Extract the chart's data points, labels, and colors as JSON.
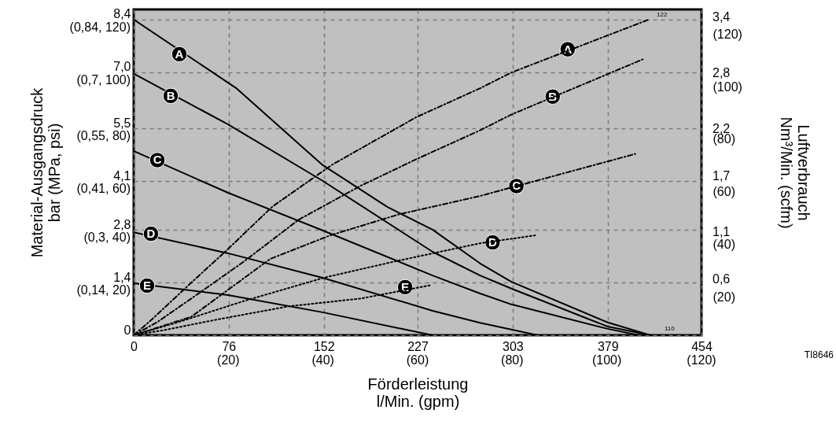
{
  "chart_data": {
    "type": "line",
    "xlabel": "Förderleistung\nl/Min. (gpm)",
    "ylabel": "Material-Ausgangsdruck\nbar (MPa, psi)",
    "y2label": "Luftverbrauch\nNm³/Min. (scfm)",
    "xlim": [
      0,
      454
    ],
    "xticks": [
      0,
      76,
      152,
      227,
      303,
      379,
      454
    ],
    "x2lim": [
      0,
      120
    ],
    "x2ticks": [
      {
        "value": 20,
        "label": "(20)"
      },
      {
        "value": 40,
        "label": "(40)"
      },
      {
        "value": 60,
        "label": "(60)"
      },
      {
        "value": 80,
        "label": "(80)"
      },
      {
        "value": 100,
        "label": "(100)"
      },
      {
        "value": 120,
        "label": "(120)"
      }
    ],
    "ylim": [
      0,
      8.67
    ],
    "yticks": [
      0,
      {
        "value": 1.4,
        "label": "1,4"
      },
      {
        "value": 2.8,
        "label": "2,8"
      },
      {
        "value": 4.1,
        "label": "4,1"
      },
      {
        "value": 5.5,
        "label": "5,5"
      },
      {
        "value": 7.0,
        "label": "7,0"
      },
      {
        "value": 8.4,
        "label": "8,4"
      }
    ],
    "y2lim": [
      0,
      124
    ],
    "y2ticks": [
      {
        "value": 20,
        "label": "(20)"
      },
      {
        "value": 40,
        "label": "(40)"
      },
      {
        "value": 60,
        "label": "(60)"
      },
      {
        "value": 80,
        "label": "(80)"
      },
      {
        "value": 100,
        "label": "(100)"
      },
      {
        "value": 120,
        "label": "(120)"
      }
    ],
    "y3lim": [
      0,
      3.48
    ],
    "y3ticks": [
      {
        "value": 0.6,
        "label": "0,6"
      },
      {
        "value": 1.1,
        "label": "1,1"
      },
      {
        "value": 1.7,
        "label": "1,7"
      },
      {
        "value": 2.2,
        "label": "2,2"
      },
      {
        "value": 2.8,
        "label": "2,8"
      },
      {
        "value": 3.4,
        "label": "3,4"
      }
    ],
    "grid": true,
    "series": [
      {
        "color": "#000000",
        "line_style": "solid",
        "x": [
          0,
          81.8,
          151,
          203,
          239,
          277,
          302,
          379,
          413
        ],
        "values": [
          8.4,
          6.58,
          4.53,
          3.41,
          2.81,
          1.91,
          1.42,
          0.34,
          0
        ]
      },
      {
        "color": "#000000",
        "line_style": "solid",
        "x": [
          0,
          75.5,
          151,
          239,
          277,
          302,
          379,
          413
        ],
        "values": [
          6.96,
          5.61,
          4.11,
          2.22,
          1.59,
          1.24,
          0.23,
          0
        ]
      },
      {
        "color": "#000000",
        "line_style": "solid",
        "x": [
          0,
          75.5,
          151,
          239,
          277,
          302,
          379,
          404
        ],
        "values": [
          4.9,
          3.79,
          2.79,
          1.59,
          1.11,
          0.82,
          0.17,
          0
        ]
      },
      {
        "color": "#000000",
        "line_style": "solid",
        "x": [
          0,
          75.5,
          151,
          239,
          277,
          323
        ],
        "values": [
          2.74,
          2.18,
          1.53,
          0.65,
          0.33,
          0
        ]
      },
      {
        "color": "#000000",
        "line_style": "solid",
        "x": [
          0,
          75.5,
          151,
          239
        ],
        "values": [
          1.38,
          1.07,
          0.61,
          0
        ]
      },
      {
        "color": "#000000",
        "line_style": "dashed",
        "axis": "y2",
        "x": [
          0,
          14.5,
          46,
          73.6,
          111,
          159,
          226,
          277,
          302,
          411
        ],
        "values": [
          0,
          6,
          20,
          32,
          49,
          65,
          83,
          94,
          100,
          120
        ]
      },
      {
        "color": "#000000",
        "line_style": "dashed",
        "axis": "y2",
        "x": [
          0,
          18.9,
          52.2,
          88,
          132,
          182,
          226,
          277,
          302,
          407
        ],
        "values": [
          0,
          5,
          16,
          28,
          44,
          57,
          67,
          78,
          84,
          105
        ]
      },
      {
        "color": "#000000",
        "line_style": "dashed",
        "axis": "y2",
        "x": [
          0,
          46,
          109,
          157,
          212,
          277,
          401
        ],
        "values": [
          0,
          7,
          29,
          38,
          46,
          53,
          69
        ]
      },
      {
        "color": "#000000",
        "line_style": "dotted",
        "axis": "y2",
        "x": [
          0,
          35.8,
          88,
          153,
          208,
          277,
          321
        ],
        "values": [
          0,
          5,
          13,
          22,
          28,
          35,
          38
        ]
      },
      {
        "color": "#000000",
        "line_style": "dotted",
        "axis": "y2",
        "x": [
          0,
          25,
          67,
          124,
          182,
          237
        ],
        "values": [
          0,
          2,
          6,
          11,
          14,
          19
        ]
      }
    ],
    "annotations": [
      {
        "text": "A",
        "x": 36.5,
        "y": 7.48
      },
      {
        "text": "B",
        "x": 29.6,
        "y": 6.37
      },
      {
        "text": "C",
        "x": 18.9,
        "y": 4.66
      },
      {
        "text": "D",
        "x": 13.8,
        "y": 2.7
      },
      {
        "text": "E",
        "x": 10.7,
        "y": 1.32
      },
      {
        "text": "A",
        "x": 347,
        "y": 7.61
      },
      {
        "text": "B",
        "x": 335,
        "y": 6.35
      },
      {
        "text": "C",
        "x": 306,
        "y": 3.97
      },
      {
        "text": "D",
        "x": 287,
        "y": 2.47
      },
      {
        "text": "E",
        "x": 217,
        "y": 1.28
      },
      "122",
      "110",
      "TI8646",
      "(0,14, 20)",
      "(0,3, 40)",
      "(0,41, 60)",
      "(0,55, 80)",
      "(0,7, 100)",
      "(0,84, 120)"
    ]
  }
}
